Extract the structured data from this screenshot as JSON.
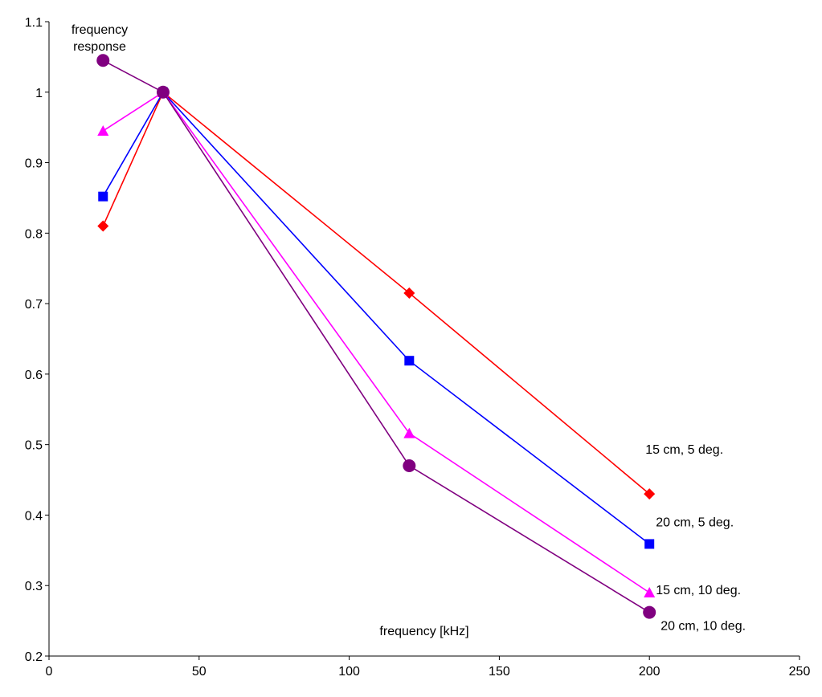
{
  "chart_data": {
    "type": "line",
    "ylabel_lines": [
      "frequency",
      "response"
    ],
    "xlabel": "frequency [kHz]",
    "xlim": [
      0,
      250
    ],
    "ylim": [
      0.2,
      1.1
    ],
    "xticks": [
      0,
      50,
      100,
      150,
      200,
      250
    ],
    "yticks": [
      0.2,
      0.3,
      0.4,
      0.5,
      0.6,
      0.7,
      0.8,
      0.9,
      1,
      1.1
    ],
    "grid": false,
    "legend": "none",
    "series": [
      {
        "name": "15 cm, 5 deg.",
        "color": "#ff0000",
        "marker": "diamond",
        "x": [
          18,
          38,
          120,
          200
        ],
        "y": [
          0.81,
          1.0,
          0.715,
          0.43
        ]
      },
      {
        "name": "20 cm, 5 deg.",
        "color": "#0000ff",
        "marker": "square",
        "x": [
          18,
          38,
          120,
          200
        ],
        "y": [
          0.852,
          1.0,
          0.619,
          0.359
        ]
      },
      {
        "name": "15 cm, 10 deg.",
        "color": "#ff00ff",
        "marker": "triangle",
        "x": [
          18,
          38,
          120,
          200
        ],
        "y": [
          0.945,
          1.0,
          0.516,
          0.29
        ]
      },
      {
        "name": "20 cm, 10 deg.",
        "color": "#800080",
        "marker": "circle",
        "x": [
          18,
          38,
          120,
          200
        ],
        "y": [
          1.045,
          1.0,
          0.47,
          0.262
        ]
      }
    ]
  }
}
